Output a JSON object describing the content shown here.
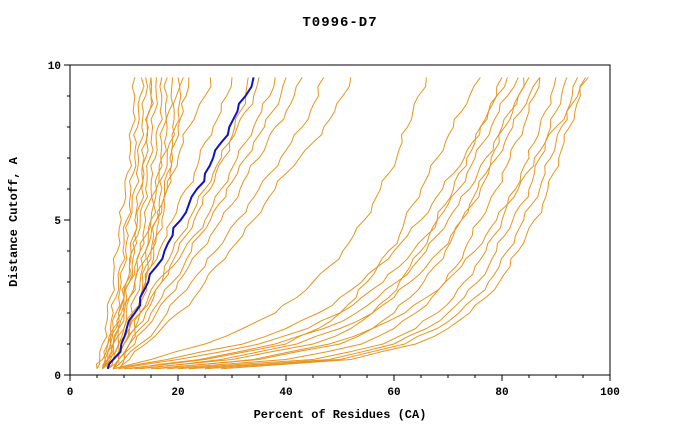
{
  "colors": {
    "model": "#E8941E",
    "reference": "#1212BE",
    "axis": "#000000",
    "background": "#FFFFFF"
  },
  "chart_data": {
    "type": "line",
    "title": "T0996-D7",
    "xlabel": "Percent of Residues (CA)",
    "ylabel": "Distance Cutoff, A",
    "xlim": [
      0,
      100
    ],
    "ylim": [
      0,
      10
    ],
    "x_major_ticks": [
      0,
      20,
      40,
      60,
      80,
      100
    ],
    "x_minor_step": 5,
    "y_major_ticks": [
      0,
      5,
      10
    ],
    "y_minor_step": 1,
    "grid": false,
    "legend": "none",
    "y_grid": [
      0.2,
      0.5,
      1,
      1.5,
      2,
      2.5,
      3,
      3.5,
      4,
      4.5,
      5,
      5.5,
      6,
      6.5,
      7,
      7.5,
      8,
      8.5,
      9,
      9.6
    ],
    "series": [
      {
        "name": "model-01",
        "color": "model",
        "x": [
          5,
          5.5,
          6,
          6.5,
          7,
          7.5,
          8,
          8.2,
          8.8,
          9,
          9.5,
          10,
          10.2,
          10.6,
          11,
          11.2,
          11.5,
          11.7,
          12,
          12
        ]
      },
      {
        "name": "model-02",
        "color": "model",
        "x": [
          6,
          6.5,
          7,
          7.5,
          8,
          8.5,
          9,
          9.3,
          9.8,
          10,
          10.5,
          11,
          11.3,
          11.7,
          12,
          12.3,
          12.5,
          12.7,
          13,
          13.2
        ]
      },
      {
        "name": "model-03",
        "color": "model",
        "x": [
          6,
          7,
          7.5,
          8,
          8.5,
          9,
          9.5,
          10,
          10.3,
          10.8,
          11,
          11.5,
          12,
          12.3,
          12.7,
          13,
          13.3,
          13.6,
          14,
          14
        ]
      },
      {
        "name": "model-04",
        "color": "model",
        "x": [
          7,
          7.5,
          8,
          9,
          9.5,
          10,
          10.5,
          11,
          11.3,
          11.8,
          12,
          12.5,
          13,
          13.3,
          13.7,
          14,
          14.3,
          14.6,
          15,
          15
        ]
      },
      {
        "name": "model-05",
        "color": "model",
        "x": [
          6,
          7,
          8,
          9,
          10,
          10.5,
          11,
          11.5,
          12,
          12.5,
          13,
          13.5,
          14,
          14.3,
          14.8,
          15,
          15.3,
          15.7,
          16,
          16
        ]
      },
      {
        "name": "model-06",
        "color": "model",
        "x": [
          7,
          8,
          9,
          10,
          10.5,
          11,
          12,
          12.5,
          13,
          13.5,
          14,
          14.5,
          15,
          15.3,
          15.8,
          16,
          16.3,
          16.7,
          17,
          17
        ]
      },
      {
        "name": "model-07",
        "color": "model",
        "x": [
          8,
          9,
          10,
          11,
          11.5,
          12,
          13,
          13.5,
          14,
          14.5,
          15,
          15.5,
          16,
          16.3,
          16.8,
          17,
          17.3,
          17.7,
          18,
          18
        ]
      },
      {
        "name": "model-08",
        "color": "model",
        "x": [
          8,
          9,
          10,
          11,
          12,
          13,
          13.5,
          14,
          15,
          15.5,
          16,
          16.5,
          17,
          17.5,
          18,
          18.5,
          19,
          19.3,
          19.7,
          20
        ]
      },
      {
        "name": "model-09",
        "color": "model",
        "x": [
          7,
          8,
          9.5,
          11,
          12,
          13,
          14,
          15,
          15.5,
          16,
          17,
          17.5,
          18,
          18.5,
          19,
          19.5,
          20,
          21,
          21.5,
          22
        ]
      },
      {
        "name": "model-10",
        "color": "model",
        "x": [
          5,
          6,
          7,
          8,
          9,
          10,
          11,
          12,
          13,
          14,
          15,
          15.5,
          16,
          16.5,
          17,
          17.5,
          18,
          18.3,
          18.7,
          19
        ]
      },
      {
        "name": "model-11",
        "color": "model",
        "x": [
          6,
          6.5,
          7.5,
          8.5,
          9,
          10,
          10.5,
          11,
          11.5,
          12,
          12.5,
          13,
          13.3,
          13.7,
          14,
          14.2,
          14.5,
          14.7,
          15,
          15
        ]
      },
      {
        "name": "model-12",
        "color": "model",
        "x": [
          9,
          10,
          11,
          12,
          13,
          13.5,
          14,
          14.5,
          15,
          16,
          16.5,
          17,
          17.5,
          18,
          18.5,
          19,
          19.5,
          20,
          20.5,
          21
        ]
      },
      {
        "name": "model-13",
        "color": "model",
        "x": [
          6,
          7,
          8,
          9,
          10,
          11,
          12,
          13,
          14,
          15,
          16,
          17,
          18,
          19,
          20,
          21,
          22,
          23.5,
          25,
          26
        ]
      },
      {
        "name": "model-14",
        "color": "model",
        "x": [
          7,
          8,
          9,
          10,
          11.5,
          13,
          14,
          15,
          16.5,
          18,
          19,
          20,
          21.5,
          23,
          24,
          25,
          26.5,
          28,
          29,
          30
        ]
      },
      {
        "name": "model-15",
        "color": "model",
        "x": [
          6,
          8,
          10,
          12,
          13,
          14.5,
          16,
          17.5,
          19,
          20.5,
          22,
          23.5,
          25,
          26.5,
          28,
          29.5,
          31,
          32.5,
          34,
          35
        ]
      },
      {
        "name": "model-16",
        "color": "model",
        "x": [
          8,
          9,
          11,
          13,
          15,
          17,
          19,
          21,
          22.5,
          24,
          26,
          27.5,
          29,
          31,
          32.5,
          34,
          36,
          37.5,
          39,
          40
        ]
      },
      {
        "name": "model-17",
        "color": "model",
        "x": [
          7,
          9,
          12,
          14,
          16,
          18,
          20,
          22,
          24,
          26,
          28,
          30,
          31.5,
          33,
          35,
          36.5,
          38,
          40,
          41.5,
          43
        ]
      },
      {
        "name": "model-18",
        "color": "model",
        "x": [
          8,
          10,
          13,
          16,
          18,
          20,
          22.5,
          25,
          27,
          29,
          31,
          33,
          35,
          37,
          39,
          41,
          43,
          44.5,
          46,
          47
        ]
      },
      {
        "name": "model-19",
        "color": "model",
        "x": [
          9,
          11,
          14,
          17,
          20,
          23,
          25,
          27,
          29.5,
          32,
          34,
          36,
          38,
          40,
          42.5,
          45,
          47,
          49,
          50.5,
          52
        ]
      },
      {
        "name": "model-20",
        "color": "model",
        "x": [
          6,
          7,
          9,
          11,
          13,
          15,
          17,
          19,
          21,
          23,
          25,
          26.5,
          28,
          29.5,
          31,
          32.5,
          34,
          35.5,
          37,
          38
        ]
      },
      {
        "name": "model-21",
        "color": "model",
        "x": [
          7,
          8,
          10,
          12,
          14,
          15.5,
          17,
          18.5,
          20,
          21.5,
          23,
          24.5,
          26,
          27,
          28.5,
          29.5,
          30.5,
          31.5,
          32.5,
          33
        ]
      },
      {
        "name": "model-22",
        "color": "model",
        "x": [
          10,
          25,
          40,
          46,
          50,
          53,
          55,
          57,
          59,
          61,
          62,
          63.5,
          65,
          66.5,
          68,
          69.5,
          71,
          72.5,
          74,
          76
        ]
      },
      {
        "name": "model-23",
        "color": "model",
        "x": [
          12,
          30,
          45,
          52,
          56,
          59,
          61,
          63,
          65,
          66.5,
          68,
          69.5,
          71,
          72,
          73.5,
          75,
          76,
          77.5,
          79,
          80
        ]
      },
      {
        "name": "model-24",
        "color": "model",
        "x": [
          15,
          35,
          50,
          56,
          60,
          63,
          65.5,
          67.5,
          69.5,
          71,
          72.5,
          74,
          75.5,
          77,
          78,
          79.5,
          80.5,
          82,
          83,
          84
        ]
      },
      {
        "name": "model-25",
        "color": "model",
        "x": [
          18,
          40,
          54,
          60,
          64,
          67,
          69.5,
          71.5,
          73,
          74.5,
          76,
          77.5,
          79,
          80,
          81.5,
          82.5,
          84,
          85,
          86,
          87
        ]
      },
      {
        "name": "model-26",
        "color": "model",
        "x": [
          20,
          45,
          58,
          64,
          68,
          71,
          73,
          75,
          77,
          78.5,
          80,
          81,
          82.5,
          83.5,
          85,
          86,
          87,
          88,
          89,
          90
        ]
      },
      {
        "name": "model-27",
        "color": "model",
        "x": [
          22,
          48,
          60,
          66,
          70,
          73,
          75.5,
          77.5,
          79,
          80.5,
          82,
          83.5,
          85,
          86,
          87,
          88,
          89,
          90,
          91,
          92
        ]
      },
      {
        "name": "model-28",
        "color": "model",
        "x": [
          25,
          50,
          62,
          68,
          72,
          75,
          77.5,
          79.5,
          81,
          82.5,
          84,
          85.5,
          87,
          88,
          89,
          90,
          91,
          92,
          93,
          94
        ]
      },
      {
        "name": "model-29",
        "color": "model",
        "x": [
          28,
          52,
          64,
          70,
          74,
          77,
          79.5,
          81.5,
          83,
          84.5,
          86,
          87.5,
          88.5,
          89.5,
          90.5,
          91.5,
          92.5,
          93.5,
          94.5,
          95.5
        ]
      },
      {
        "name": "model-30",
        "color": "model",
        "x": [
          8,
          18,
          32,
          40,
          46,
          50,
          54,
          57,
          60,
          62.5,
          65,
          67,
          69,
          71,
          73,
          74.5,
          76,
          77.5,
          79,
          81
        ]
      },
      {
        "name": "model-31",
        "color": "model",
        "x": [
          9,
          20,
          35,
          44,
          50,
          54,
          58,
          61,
          63.5,
          66,
          68,
          70,
          72,
          73.5,
          75,
          76.5,
          78,
          79.5,
          81,
          83
        ]
      },
      {
        "name": "model-32",
        "color": "model",
        "x": [
          11,
          24,
          38,
          47,
          53,
          57,
          60.5,
          63.5,
          66,
          68,
          70,
          72,
          74,
          75.5,
          77,
          78.5,
          80,
          81.5,
          83,
          85
        ]
      },
      {
        "name": "model-33",
        "color": "model",
        "x": [
          13,
          28,
          42,
          50,
          56,
          60,
          63,
          66,
          68.5,
          70.5,
          72.5,
          74.5,
          76,
          77.5,
          79,
          80.5,
          82,
          83.5,
          85,
          87
        ]
      },
      {
        "name": "model-34",
        "color": "model",
        "x": [
          16,
          34,
          48,
          56,
          62,
          66,
          69.5,
          72.5,
          75,
          77,
          79,
          81,
          83,
          84.5,
          86,
          88,
          90,
          92,
          94,
          96
        ]
      },
      {
        "name": "model-35",
        "color": "model",
        "x": [
          8,
          15,
          25,
          32,
          38,
          42,
          45,
          48,
          50.5,
          52.5,
          54.5,
          56,
          57.5,
          59,
          60.5,
          61.5,
          62.5,
          63.5,
          64.5,
          66
        ]
      },
      {
        "name": "reference-highlight",
        "color": "reference",
        "x": [
          7,
          8,
          9.5,
          10.5,
          12,
          13,
          14.5,
          16,
          17.5,
          19,
          20.5,
          22,
          23.5,
          25,
          26.5,
          28,
          29.5,
          31,
          32.5,
          34
        ]
      }
    ]
  }
}
